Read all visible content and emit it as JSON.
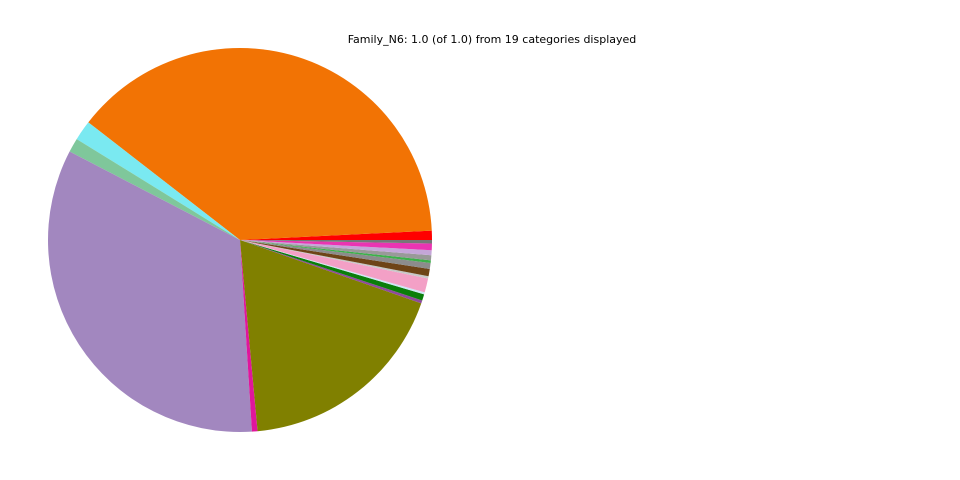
{
  "chart_data": {
    "type": "pie",
    "title": "Family_N6: 1.0 (of 1.0) from 19 categories displayed",
    "categories": [
      null,
      null,
      null,
      null,
      null,
      null,
      null,
      null,
      null,
      null,
      null,
      null,
      null,
      null,
      null,
      null,
      null,
      null,
      null
    ],
    "values": [
      0.0078,
      0.3872,
      0.0169,
      0.0119,
      0.3361,
      0.0047,
      0.1819,
      0.0025,
      0.0053,
      0.0017,
      0.0119,
      0.0019,
      0.0061,
      0.005,
      0.0022,
      0.0042,
      0.0042,
      0.0056,
      0.0029
    ],
    "colors": [
      "#ff0000",
      "#f27304",
      "#7ae9f1",
      "#7fc79b",
      "#a287bf",
      "#e0169c",
      "#808000",
      "#8e4a9c",
      "#0a7e0a",
      "#cde8f5",
      "#f3a0c6",
      "#c8c8c8",
      "#6e4417",
      "#8c8c8c",
      "#3cb04a",
      "#999999",
      "#c4a6d8",
      "#ea34b2",
      "#777777"
    ]
  }
}
